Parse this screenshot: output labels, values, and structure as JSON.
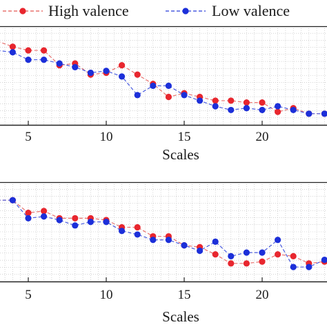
{
  "legend": [
    {
      "label": "High valence",
      "color": "#e8262e",
      "line_color": "#e8726f"
    },
    {
      "label": "Low valence",
      "color": "#1c2fd9",
      "line_color": "#4a5ce0"
    }
  ],
  "chart_data": [
    {
      "type": "line",
      "title": "",
      "xlabel": "Scales",
      "ylabel": "",
      "xlim": [
        3.1,
        24
      ],
      "xticks": [
        5,
        10,
        15,
        20
      ],
      "grid": true,
      "legend_position": "top",
      "x": [
        3,
        4,
        5,
        6,
        7,
        8,
        9,
        10,
        11,
        12,
        13,
        14,
        15,
        16,
        17,
        18,
        19,
        20,
        21,
        22,
        23,
        24
      ],
      "series": [
        {
          "name": "High valence",
          "color": "#e8262e",
          "values": [
            0.72,
            0.69,
            0.67,
            0.67,
            0.59,
            0.6,
            0.54,
            0.55,
            0.59,
            0.54,
            0.49,
            0.42,
            0.44,
            0.42,
            0.4,
            0.4,
            0.39,
            0.39,
            0.34,
            0.36,
            0.33,
            0.33
          ]
        },
        {
          "name": "Low valence",
          "color": "#1c2fd9",
          "values": [
            0.67,
            0.66,
            0.62,
            0.62,
            0.6,
            0.58,
            0.55,
            0.56,
            0.53,
            0.43,
            0.48,
            0.48,
            0.43,
            0.4,
            0.37,
            0.35,
            0.36,
            0.35,
            0.37,
            0.35,
            0.33,
            0.33
          ]
        }
      ]
    },
    {
      "type": "line",
      "title": "",
      "xlabel": "Scales",
      "ylabel": "",
      "xlim": [
        3.1,
        24
      ],
      "xticks": [
        5,
        10,
        15,
        20
      ],
      "grid": true,
      "x": [
        3,
        4,
        5,
        6,
        7,
        8,
        9,
        10,
        11,
        12,
        13,
        14,
        15,
        16,
        17,
        18,
        19,
        20,
        21,
        22,
        23,
        24
      ],
      "series": [
        {
          "name": "High valence",
          "color": "#e8262e",
          "values": [
            0.82,
            0.82,
            0.75,
            0.76,
            0.72,
            0.72,
            0.72,
            0.71,
            0.67,
            0.67,
            0.62,
            0.62,
            0.57,
            0.56,
            0.52,
            0.47,
            0.47,
            0.48,
            0.52,
            0.51,
            0.47,
            0.48
          ]
        },
        {
          "name": "Low valence",
          "color": "#1c2fd9",
          "values": [
            0.82,
            0.82,
            0.72,
            0.73,
            0.71,
            0.68,
            0.7,
            0.7,
            0.65,
            0.63,
            0.6,
            0.6,
            0.57,
            0.54,
            0.59,
            0.51,
            0.53,
            0.53,
            0.6,
            0.45,
            0.45,
            0.49
          ]
        }
      ]
    }
  ]
}
